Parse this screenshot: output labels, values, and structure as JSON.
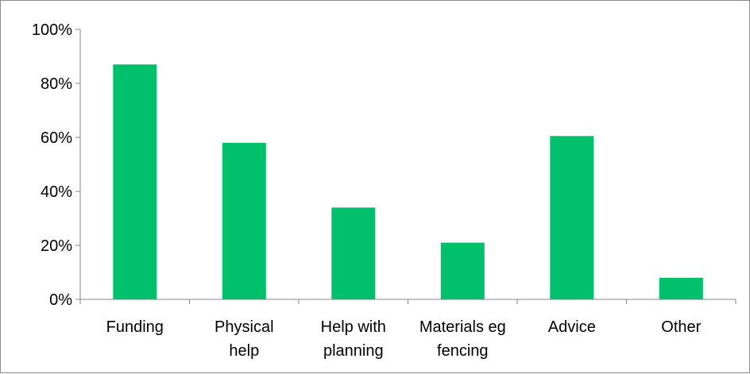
{
  "chart_data": {
    "type": "bar",
    "title": "",
    "xlabel": "",
    "ylabel": "",
    "categories": [
      [
        "Funding"
      ],
      [
        "Physical",
        "help"
      ],
      [
        "Help with",
        "planning"
      ],
      [
        "Materials eg",
        "fencing"
      ],
      [
        "Advice"
      ],
      [
        "Other"
      ]
    ],
    "values": [
      87,
      58,
      34,
      21,
      60.5,
      8
    ],
    "ylim": [
      0,
      100
    ],
    "yticks": [
      0,
      20,
      40,
      60,
      80,
      100
    ],
    "ytick_labels": [
      "0%",
      "20%",
      "40%",
      "60%",
      "80%",
      "100%"
    ],
    "grid": false,
    "legend": "none",
    "bar_color": "#00C06B",
    "axis_color": "#868686"
  }
}
